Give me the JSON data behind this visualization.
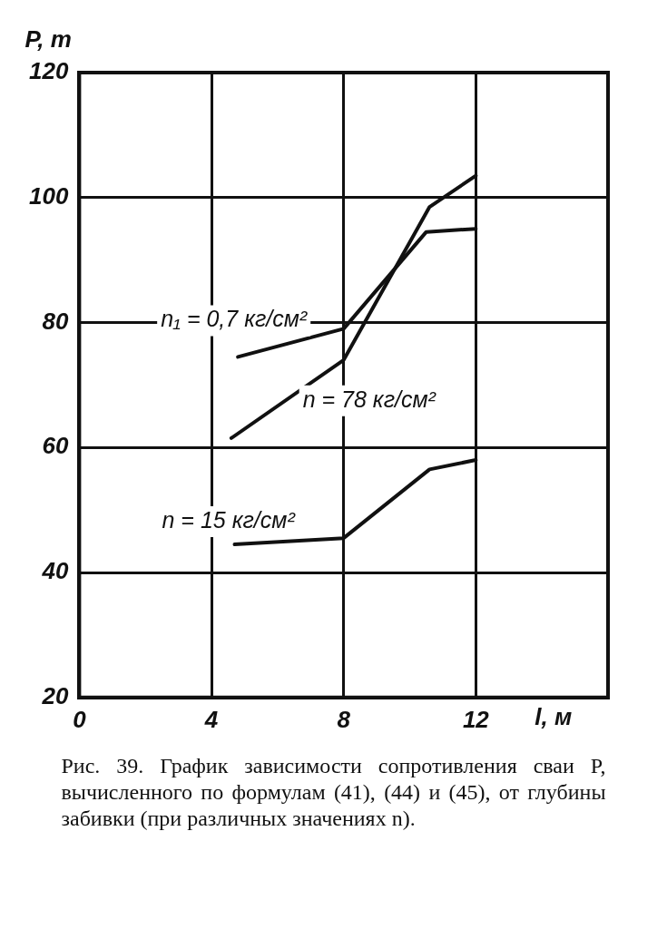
{
  "chart_data": {
    "type": "line",
    "xlabel": "l, м",
    "ylabel": "P, т",
    "xlim": [
      0,
      16
    ],
    "xticks": [
      0,
      4,
      8,
      12
    ],
    "ylim": [
      20,
      120
    ],
    "yticks": [
      20,
      40,
      60,
      80,
      100,
      120
    ],
    "grid": true,
    "legend": false,
    "marker": "none",
    "line_style": "solid",
    "series": [
      {
        "name": "n₁ = 0,7 кг/см²",
        "color": "#111111",
        "x": [
          4.8,
          8,
          10.5,
          12
        ],
        "values": [
          74.5,
          79,
          94.5,
          95
        ]
      },
      {
        "name": "n = 78 кг/см²",
        "color": "#111111",
        "x": [
          4.6,
          8,
          10.6,
          12
        ],
        "values": [
          61.5,
          74,
          98.5,
          103.5
        ]
      },
      {
        "name": "n = 15 кг/см²",
        "color": "#111111",
        "x": [
          4.7,
          8,
          10.6,
          12
        ],
        "values": [
          44.5,
          45.5,
          56.5,
          58
        ]
      }
    ],
    "annotations": [
      "Рис. 39. График зависимости сопротивления сваи P, вычисленного по формулам (41), (44) и (45), от глубины забивки (при различных значениях n)."
    ]
  }
}
